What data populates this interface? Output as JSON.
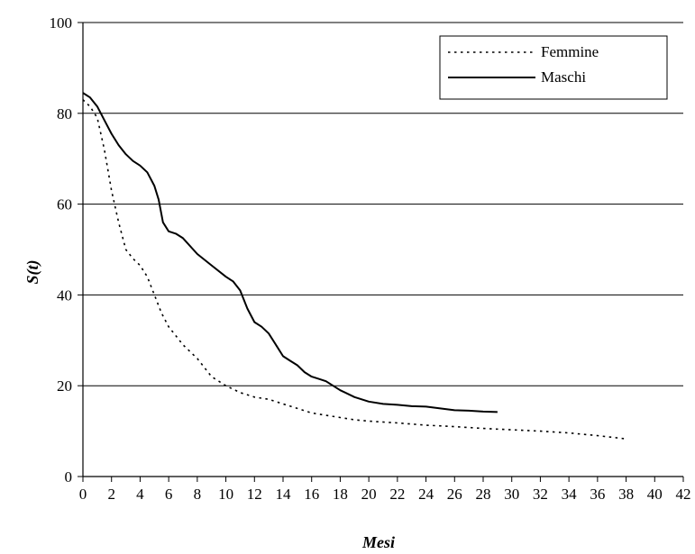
{
  "chart_data": {
    "type": "line",
    "title": "",
    "xlabel": "Mesi",
    "ylabel": "S(t)",
    "xlim": [
      0,
      42
    ],
    "ylim": [
      0,
      100
    ],
    "x_ticks": [
      0,
      2,
      4,
      6,
      8,
      10,
      12,
      14,
      16,
      18,
      20,
      22,
      24,
      26,
      28,
      30,
      32,
      34,
      36,
      38,
      40,
      42
    ],
    "y_ticks": [
      0,
      20,
      40,
      60,
      80,
      100
    ],
    "grid": "horizontal",
    "legend_position": "top-right",
    "series": [
      {
        "name": "Femmine",
        "style": "dotted",
        "color": "#000000",
        "points": [
          [
            0,
            83
          ],
          [
            0.5,
            81.5
          ],
          [
            1,
            79
          ],
          [
            1.5,
            72
          ],
          [
            2,
            63
          ],
          [
            2.5,
            56
          ],
          [
            3,
            50
          ],
          [
            3.5,
            48
          ],
          [
            4,
            46.5
          ],
          [
            4.5,
            44
          ],
          [
            5,
            40
          ],
          [
            5.5,
            36
          ],
          [
            6,
            33
          ],
          [
            6.5,
            31
          ],
          [
            7,
            29
          ],
          [
            8,
            26
          ],
          [
            9,
            22
          ],
          [
            10,
            20
          ],
          [
            11,
            18.5
          ],
          [
            12,
            17.5
          ],
          [
            13,
            17
          ],
          [
            14,
            16
          ],
          [
            15,
            15
          ],
          [
            16,
            14
          ],
          [
            17,
            13.5
          ],
          [
            18,
            13
          ],
          [
            19,
            12.5
          ],
          [
            20,
            12.2
          ],
          [
            22,
            11.8
          ],
          [
            24,
            11.3
          ],
          [
            26,
            11
          ],
          [
            28,
            10.6
          ],
          [
            30,
            10.3
          ],
          [
            32,
            10
          ],
          [
            34,
            9.6
          ],
          [
            36,
            9
          ],
          [
            38,
            8.3
          ]
        ]
      },
      {
        "name": "Maschi",
        "style": "solid",
        "color": "#000000",
        "points": [
          [
            0,
            84.5
          ],
          [
            0.5,
            83.5
          ],
          [
            1,
            81.5
          ],
          [
            1.5,
            78.5
          ],
          [
            2,
            75.5
          ],
          [
            2.5,
            73
          ],
          [
            3,
            71
          ],
          [
            3.5,
            69.5
          ],
          [
            4,
            68.5
          ],
          [
            4.5,
            67
          ],
          [
            5,
            64
          ],
          [
            5.3,
            61
          ],
          [
            5.6,
            56
          ],
          [
            6,
            54
          ],
          [
            6.5,
            53.5
          ],
          [
            7,
            52.5
          ],
          [
            8,
            49
          ],
          [
            9,
            46.5
          ],
          [
            10,
            44
          ],
          [
            10.5,
            43
          ],
          [
            11,
            41
          ],
          [
            11.5,
            37
          ],
          [
            12,
            34
          ],
          [
            12.5,
            33
          ],
          [
            13,
            31.5
          ],
          [
            13.5,
            29
          ],
          [
            14,
            26.5
          ],
          [
            14.5,
            25.5
          ],
          [
            15,
            24.5
          ],
          [
            15.5,
            23
          ],
          [
            16,
            22
          ],
          [
            16.5,
            21.5
          ],
          [
            17,
            21
          ],
          [
            17.5,
            20
          ],
          [
            18,
            19
          ],
          [
            19,
            17.5
          ],
          [
            20,
            16.5
          ],
          [
            21,
            16
          ],
          [
            22,
            15.8
          ],
          [
            23,
            15.5
          ],
          [
            24,
            15.4
          ],
          [
            25,
            15
          ],
          [
            26,
            14.6
          ],
          [
            27,
            14.5
          ],
          [
            28,
            14.3
          ],
          [
            29,
            14.2
          ]
        ]
      }
    ]
  }
}
